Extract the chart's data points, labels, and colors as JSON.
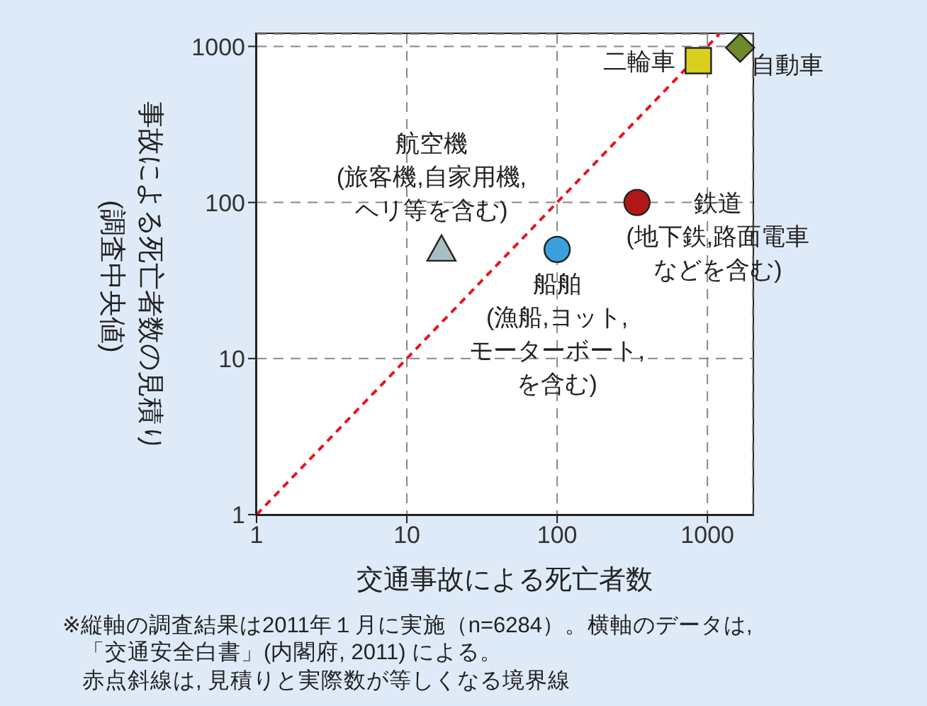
{
  "chart_data": {
    "type": "scatter",
    "xlabel": "交通事故による死亡者数",
    "ylabel": "事故による死亡者数の見積り(調査中央値)",
    "annotations": [
      "※縦軸の調査結果は2011年１月に実施（n=6284）。横軸のデータは,「交通安全白書」(内閣府, 2011) による。赤点斜線は, 見積りと実際数が等しくなる境界線"
    ],
    "log": "xy",
    "xlim": [
      1,
      2000
    ],
    "ylim": [
      1,
      1200
    ],
    "xticks": [
      1,
      10,
      100,
      1000
    ],
    "yticks": [
      1,
      10,
      100,
      1000
    ],
    "grid": true,
    "series": [
      {
        "name": "二輪車",
        "color": "#d8cf1e",
        "marker": "square",
        "x": [
          870
        ],
        "values": [
          810
        ]
      },
      {
        "name": "自動車",
        "color": "#6f8a2a",
        "marker": "diamond",
        "x": [
          1650
        ],
        "values": [
          980
        ]
      },
      {
        "name": "鉄道(地下鉄,路面電車などを含む)",
        "color": "#b01818",
        "marker": "circle",
        "x": [
          340
        ],
        "values": [
          100
        ]
      },
      {
        "name": "船舶(漁船,ヨット,モーターボート,を含む)",
        "color": "#3aa0dc",
        "marker": "circle",
        "x": [
          100
        ],
        "values": [
          50
        ]
      },
      {
        "name": "航空機(旅客機,自家用機,ヘリ等を含む)",
        "color": "#a9bec2",
        "marker": "triangle",
        "x": [
          17
        ],
        "values": [
          50
        ]
      },
      {
        "type": "line",
        "color": "#e8141e",
        "line_style": "dashed",
        "x": [
          1,
          1200
        ],
        "values": [
          1,
          1200
        ]
      }
    ]
  }
}
